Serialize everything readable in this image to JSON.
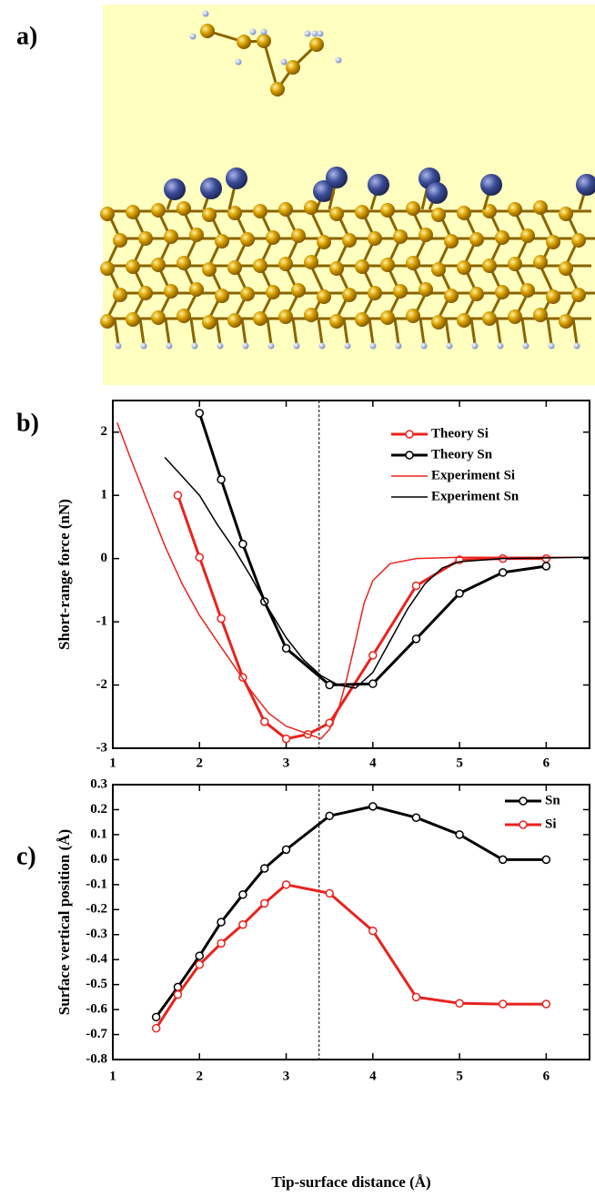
{
  "image_panel": {
    "label": "a)"
  },
  "chart_data": [
    {
      "type": "line",
      "panel_label": "b)",
      "ylabel": "Short-range force (nN)",
      "xlim": [
        1,
        6.5
      ],
      "ylim": [
        -3,
        2.5
      ],
      "xticks": [
        1,
        2,
        3,
        4,
        5,
        6
      ],
      "yticks": [
        -3,
        -2,
        -1,
        0,
        1,
        2
      ],
      "vline": 3.38,
      "legend": "upper right",
      "series": [
        {
          "name": "Theory Si",
          "color": "#e8231e",
          "marker": true,
          "x": [
            1.75,
            2.0,
            2.25,
            2.5,
            2.75,
            3.0,
            3.25,
            3.5,
            4.0,
            4.5,
            5.0,
            5.5,
            6.0
          ],
          "values": [
            1.0,
            0.02,
            -0.95,
            -1.88,
            -2.58,
            -2.85,
            -2.78,
            -2.6,
            -1.53,
            -0.43,
            -0.02,
            0.0,
            0.0
          ]
        },
        {
          "name": "Theory Sn",
          "color": "#000000",
          "marker": true,
          "x": [
            2.0,
            2.25,
            2.5,
            2.75,
            3.0,
            3.5,
            4.0,
            4.5,
            5.0,
            5.5,
            6.0
          ],
          "values": [
            2.3,
            1.25,
            0.23,
            -0.68,
            -1.42,
            -2.0,
            -1.98,
            -1.27,
            -0.55,
            -0.22,
            -0.12
          ]
        },
        {
          "name": "Experiment Si",
          "color": "#e8231e",
          "marker": false,
          "x": [
            1.05,
            1.2,
            1.4,
            1.6,
            1.8,
            2.0,
            2.2,
            2.4,
            2.6,
            2.8,
            3.0,
            3.2,
            3.4,
            3.5,
            3.6,
            3.7,
            3.8,
            3.9,
            4.0,
            4.2,
            4.5,
            5.0,
            6.0,
            6.5
          ],
          "values": [
            2.15,
            1.6,
            0.9,
            0.2,
            -0.4,
            -0.9,
            -1.3,
            -1.7,
            -2.1,
            -2.45,
            -2.65,
            -2.75,
            -2.85,
            -2.7,
            -2.4,
            -1.9,
            -1.3,
            -0.7,
            -0.35,
            -0.08,
            0.0,
            0.02,
            0.02,
            0.02
          ]
        },
        {
          "name": "Experiment Sn",
          "color": "#000000",
          "marker": false,
          "x": [
            1.6,
            1.8,
            2.0,
            2.2,
            2.4,
            2.6,
            2.8,
            3.0,
            3.2,
            3.4,
            3.6,
            3.8,
            4.0,
            4.2,
            4.4,
            4.6,
            4.8,
            5.0,
            5.5,
            6.5
          ],
          "values": [
            1.6,
            1.3,
            1.0,
            0.55,
            0.15,
            -0.3,
            -0.8,
            -1.25,
            -1.6,
            -1.85,
            -2.0,
            -2.05,
            -1.8,
            -1.3,
            -0.8,
            -0.4,
            -0.15,
            -0.05,
            0.0,
            0.02
          ]
        }
      ]
    },
    {
      "type": "line",
      "panel_label": "c)",
      "xlabel": "Tip-surface distance (Å)",
      "ylabel": "Surface vertical position (Å)",
      "xlim": [
        1,
        6.5
      ],
      "ylim": [
        -0.8,
        0.3
      ],
      "xticks": [
        1,
        2,
        3,
        4,
        5,
        6
      ],
      "yticks": [
        -0.8,
        -0.7,
        -0.6,
        -0.5,
        -0.4,
        -0.3,
        -0.2,
        -0.1,
        {
          "value": 0,
          "label": "0.0"
        },
        0.1,
        0.2,
        0.3
      ],
      "vline": 3.38,
      "legend": "upper right",
      "series": [
        {
          "name": "Sn",
          "color": "#000000",
          "marker": true,
          "x": [
            1.5,
            1.75,
            2.0,
            2.25,
            2.5,
            2.75,
            3.0,
            3.5,
            4.0,
            4.5,
            5.0,
            5.5,
            6.0
          ],
          "values": [
            -0.63,
            -0.51,
            -0.385,
            -0.25,
            -0.14,
            -0.035,
            0.04,
            0.175,
            0.213,
            0.168,
            0.1,
            0.0,
            0.0
          ]
        },
        {
          "name": "Si",
          "color": "#e8231e",
          "marker": true,
          "x": [
            1.5,
            1.75,
            2.0,
            2.25,
            2.5,
            2.75,
            3.0,
            3.5,
            4.0,
            4.5,
            5.0,
            5.5,
            6.0
          ],
          "values": [
            -0.675,
            -0.54,
            -0.42,
            -0.335,
            -0.26,
            -0.175,
            -0.1,
            -0.135,
            -0.285,
            -0.55,
            -0.575,
            -0.578,
            -0.578
          ]
        }
      ]
    }
  ]
}
